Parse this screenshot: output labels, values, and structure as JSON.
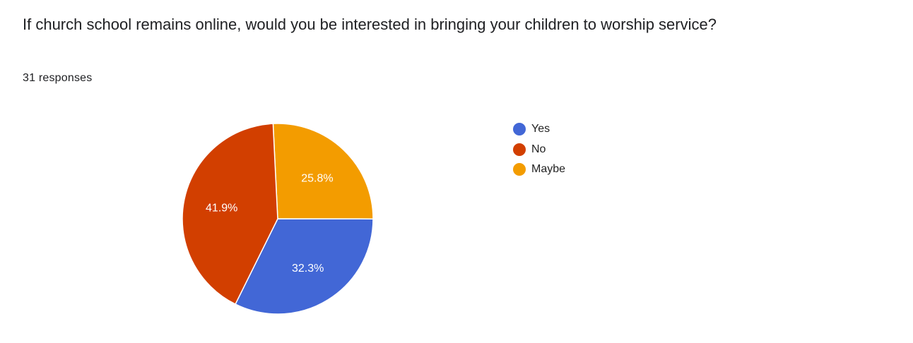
{
  "question": {
    "title": "If church school remains online, would you be interested in bringing your children to worship service?",
    "response_count": "31 responses"
  },
  "chart_data": {
    "type": "pie",
    "title": "If church school remains online, would you be interested in bringing your children to worship service?",
    "slices": [
      {
        "label": "Yes",
        "value": 32.3,
        "display": "32.3%",
        "color": "#4267d6"
      },
      {
        "label": "No",
        "value": 41.9,
        "display": "41.9%",
        "color": "#d23f00"
      },
      {
        "label": "Maybe",
        "value": 25.8,
        "display": "25.8%",
        "color": "#f39c00"
      }
    ],
    "slice_order_clockwise_from_top": [
      "Maybe",
      "Yes",
      "No"
    ],
    "legend_position": "right",
    "label_color": "#ffffff"
  }
}
